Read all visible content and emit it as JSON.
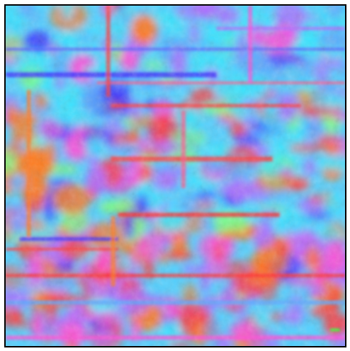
{
  "image": {
    "kind": "false-color texture",
    "palette": [
      "#36e6ff",
      "#5aa8ff",
      "#3b2bff",
      "#ff3b3b",
      "#ff7a1f",
      "#ff4fd8",
      "#b06bff",
      "#7dff7a"
    ]
  }
}
